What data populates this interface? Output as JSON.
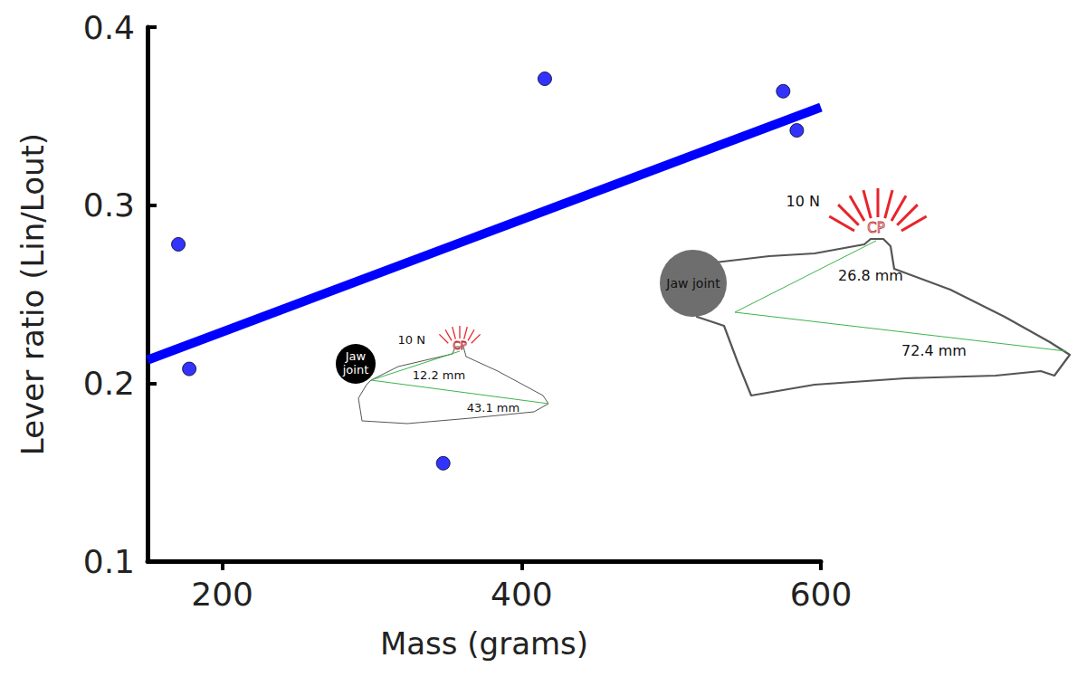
{
  "chart_data": {
    "type": "scatter",
    "x_label": "Mass (grams)",
    "y_label": "Lever ratio (Lin/Lout)",
    "x": [
      170.6,
      177.9,
      347.6,
      415.5,
      574.8,
      583.9
    ],
    "values": [
      0.278,
      0.208,
      0.155,
      0.371,
      0.364,
      0.342
    ],
    "color": "#0000ff",
    "marker": "circle",
    "fit_line": {
      "x": [
        150,
        600
      ],
      "values": [
        0.213,
        0.355
      ],
      "color": "#0000ff",
      "line_style": "solid"
    },
    "xlim": [
      150,
      600
    ],
    "ylim": [
      0.1,
      0.4
    ],
    "xticks": [
      200,
      400,
      600
    ],
    "yticks": [
      0.1,
      0.2,
      0.3,
      0.4
    ],
    "grid": false,
    "annotations": [
      {
        "joint": "Jaw joint",
        "force": "10 N",
        "point": "CP",
        "in_lever": "12.2 mm",
        "out_lever": "43.1 mm"
      },
      {
        "joint": "Jaw joint",
        "force": "10 N",
        "point": "CP",
        "in_lever": "26.8 mm",
        "out_lever": "72.4 mm"
      }
    ]
  }
}
